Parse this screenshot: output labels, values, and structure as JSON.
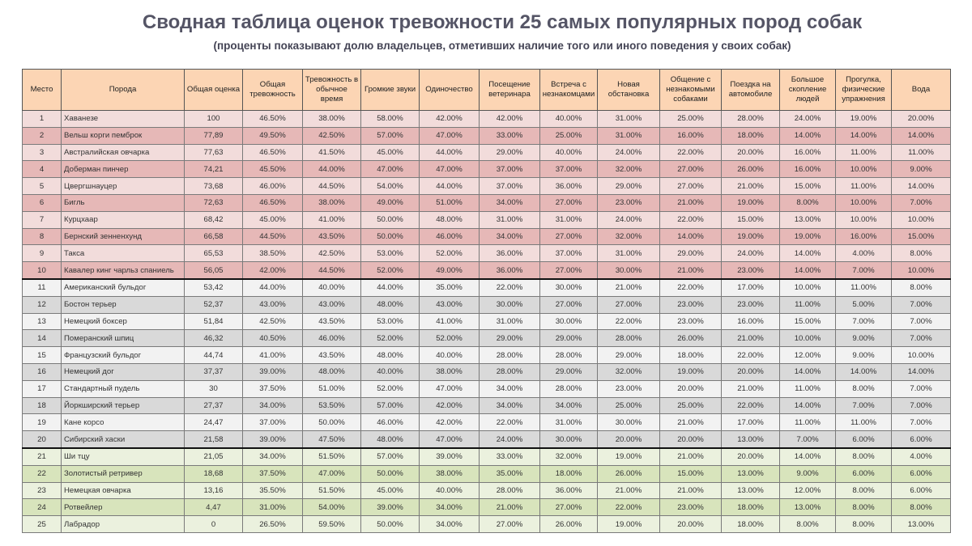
{
  "title": "Сводная таблица оценок тревожности 25 самых популярных пород собак",
  "subtitle": "(проценты показывают долю владельцев, отметивших наличие того или иного поведения у своих собак)",
  "colors": {
    "header_bg": "#fcd5b4",
    "top10_light": "#f2dcdb",
    "top10_dark": "#e6b8b7",
    "mid_light": "#f2f2f2",
    "mid_dark": "#d9d9d9",
    "low_light": "#ebf1de",
    "low_dark": "#d8e4bc"
  },
  "table": {
    "headers": [
      "Место",
      "Порода",
      "Общая оценка",
      "Общая тревожность",
      "Тревожность в обычное время",
      "Громкие звуки",
      "Одиночество",
      "Посещение ветеринара",
      "Встреча с незнакомцами",
      "Новая обстановка",
      "Общение с незнакомыми собаками",
      "Поездка на автомобиле",
      "Большое скопление людей",
      "Прогулка, физические упражнения",
      "Вода"
    ],
    "rows": [
      [
        "1",
        "Хаванезе",
        "100",
        "46.50%",
        "38.00%",
        "58.00%",
        "42.00%",
        "42.00%",
        "40.00%",
        "31.00%",
        "25.00%",
        "28.00%",
        "24.00%",
        "19.00%",
        "20.00%"
      ],
      [
        "2",
        "Вельш корги пемброк",
        "77,89",
        "49.50%",
        "42.50%",
        "57.00%",
        "47.00%",
        "33.00%",
        "25.00%",
        "31.00%",
        "16.00%",
        "18.00%",
        "14.00%",
        "14.00%",
        "14.00%"
      ],
      [
        "3",
        "Австралийская овчарка",
        "77,63",
        "46.50%",
        "41.50%",
        "45.00%",
        "44.00%",
        "29.00%",
        "40.00%",
        "24.00%",
        "22.00%",
        "20.00%",
        "16.00%",
        "11.00%",
        "11.00%"
      ],
      [
        "4",
        "Доберман пинчер",
        "74,21",
        "45.50%",
        "44.00%",
        "47.00%",
        "47.00%",
        "37.00%",
        "37.00%",
        "32.00%",
        "27.00%",
        "26.00%",
        "16.00%",
        "10.00%",
        "9.00%"
      ],
      [
        "5",
        "Цвергшнауцер",
        "73,68",
        "46.00%",
        "44.50%",
        "54.00%",
        "44.00%",
        "37.00%",
        "36.00%",
        "29.00%",
        "27.00%",
        "21.00%",
        "15.00%",
        "11.00%",
        "14.00%"
      ],
      [
        "6",
        "Бигль",
        "72,63",
        "46.50%",
        "38.00%",
        "49.00%",
        "51.00%",
        "34.00%",
        "27.00%",
        "23.00%",
        "21.00%",
        "19.00%",
        "8.00%",
        "10.00%",
        "7.00%"
      ],
      [
        "7",
        "Курцхаар",
        "68,42",
        "45.00%",
        "41.00%",
        "50.00%",
        "48.00%",
        "31.00%",
        "31.00%",
        "24.00%",
        "22.00%",
        "15.00%",
        "13.00%",
        "10.00%",
        "10.00%"
      ],
      [
        "8",
        "Бернский зенненхунд",
        "66,58",
        "44.50%",
        "43.50%",
        "50.00%",
        "46.00%",
        "34.00%",
        "27.00%",
        "32.00%",
        "14.00%",
        "19.00%",
        "19.00%",
        "16.00%",
        "15.00%"
      ],
      [
        "9",
        "Такса",
        "65,53",
        "38.50%",
        "42.50%",
        "53.00%",
        "52.00%",
        "36.00%",
        "37.00%",
        "31.00%",
        "29.00%",
        "24.00%",
        "14.00%",
        "4.00%",
        "8.00%"
      ],
      [
        "10",
        "Кавалер кинг чарльз спаниель",
        "56,05",
        "42.00%",
        "44.50%",
        "52.00%",
        "49.00%",
        "36.00%",
        "27.00%",
        "30.00%",
        "21.00%",
        "23.00%",
        "14.00%",
        "7.00%",
        "10.00%"
      ],
      [
        "11",
        "Американский бульдог",
        "53,42",
        "44.00%",
        "40.00%",
        "44.00%",
        "35.00%",
        "22.00%",
        "30.00%",
        "21.00%",
        "22.00%",
        "17.00%",
        "10.00%",
        "11.00%",
        "8.00%"
      ],
      [
        "12",
        "Бостон терьер",
        "52,37",
        "43.00%",
        "43.00%",
        "48.00%",
        "43.00%",
        "30.00%",
        "27.00%",
        "27.00%",
        "23.00%",
        "23.00%",
        "11.00%",
        "5.00%",
        "7.00%"
      ],
      [
        "13",
        "Немецкий боксер",
        "51,84",
        "42.50%",
        "43.50%",
        "53.00%",
        "41.00%",
        "31.00%",
        "30.00%",
        "22.00%",
        "23.00%",
        "16.00%",
        "15.00%",
        "7.00%",
        "7.00%"
      ],
      [
        "14",
        "Померанский шпиц",
        "46,32",
        "40.50%",
        "46.00%",
        "52.00%",
        "52.00%",
        "29.00%",
        "29.00%",
        "28.00%",
        "26.00%",
        "21.00%",
        "10.00%",
        "9.00%",
        "7.00%"
      ],
      [
        "15",
        "Французский бульдог",
        "44,74",
        "41.00%",
        "43.50%",
        "48.00%",
        "40.00%",
        "28.00%",
        "28.00%",
        "29.00%",
        "18.00%",
        "22.00%",
        "12.00%",
        "9.00%",
        "10.00%"
      ],
      [
        "16",
        "Немецкий дог",
        "37,37",
        "39.00%",
        "48.00%",
        "40.00%",
        "38.00%",
        "28.00%",
        "29.00%",
        "32.00%",
        "19.00%",
        "20.00%",
        "14.00%",
        "14.00%",
        "14.00%"
      ],
      [
        "17",
        "Стандартный пудель",
        "30",
        "37.50%",
        "51.00%",
        "52.00%",
        "47.00%",
        "34.00%",
        "28.00%",
        "23.00%",
        "20.00%",
        "21.00%",
        "11.00%",
        "8.00%",
        "7.00%"
      ],
      [
        "18",
        "Йоркширский терьер",
        "27,37",
        "34.00%",
        "53.50%",
        "57.00%",
        "42.00%",
        "34.00%",
        "34.00%",
        "25.00%",
        "25.00%",
        "22.00%",
        "14.00%",
        "7.00%",
        "7.00%"
      ],
      [
        "19",
        "Кане корсо",
        "24,47",
        "37.00%",
        "50.00%",
        "46.00%",
        "42.00%",
        "22.00%",
        "31.00%",
        "30.00%",
        "21.00%",
        "17.00%",
        "11.00%",
        "11.00%",
        "7.00%"
      ],
      [
        "20",
        "Сибирский хаски",
        "21,58",
        "39.00%",
        "47.50%",
        "48.00%",
        "47.00%",
        "24.00%",
        "30.00%",
        "20.00%",
        "20.00%",
        "13.00%",
        "7.00%",
        "6.00%",
        "6.00%"
      ],
      [
        "21",
        "Ши тцу",
        "21,05",
        "34.00%",
        "51.50%",
        "57.00%",
        "39.00%",
        "33.00%",
        "32.00%",
        "19.00%",
        "21.00%",
        "20.00%",
        "14.00%",
        "8.00%",
        "4.00%"
      ],
      [
        "22",
        "Золотистый ретривер",
        "18,68",
        "37.50%",
        "47.00%",
        "50.00%",
        "38.00%",
        "35.00%",
        "18.00%",
        "26.00%",
        "15.00%",
        "13.00%",
        "9.00%",
        "6.00%",
        "6.00%"
      ],
      [
        "23",
        "Немецкая овчарка",
        "13,16",
        "35.50%",
        "51.50%",
        "45.00%",
        "40.00%",
        "28.00%",
        "36.00%",
        "21.00%",
        "21.00%",
        "13.00%",
        "12.00%",
        "8.00%",
        "6.00%"
      ],
      [
        "24",
        "Ротвейлер",
        "4,47",
        "31.00%",
        "54.00%",
        "39.00%",
        "34.00%",
        "21.00%",
        "27.00%",
        "22.00%",
        "23.00%",
        "18.00%",
        "13.00%",
        "8.00%",
        "8.00%"
      ],
      [
        "25",
        "Лабрадор",
        "0",
        "26.50%",
        "59.50%",
        "50.00%",
        "34.00%",
        "27.00%",
        "26.00%",
        "19.00%",
        "20.00%",
        "18.00%",
        "8.00%",
        "8.00%",
        "13.00%"
      ]
    ]
  }
}
